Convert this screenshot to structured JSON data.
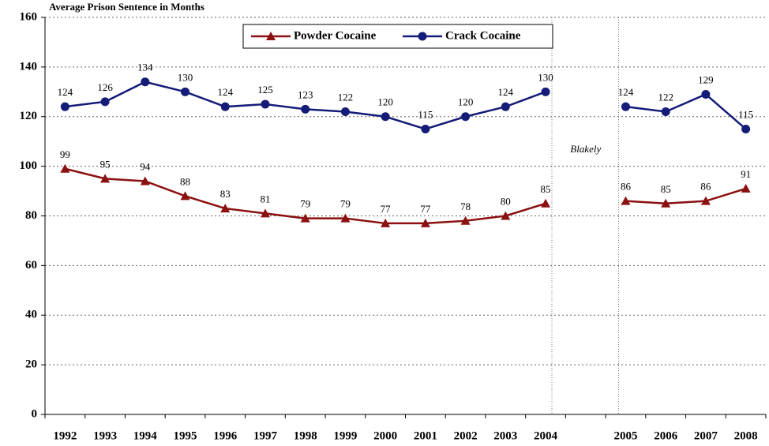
{
  "chart_data": {
    "type": "line",
    "y_axis_label": "Average Prison Sentence in Months",
    "categories": [
      "1992",
      "1993",
      "1994",
      "1995",
      "1996",
      "1997",
      "1998",
      "1999",
      "2000",
      "2001",
      "2002",
      "2003",
      "2004",
      null,
      "2005",
      "2006",
      "2007",
      "2008"
    ],
    "series": [
      {
        "name": "Powder Cocaine",
        "color": "#8b1010",
        "marker": "triangle",
        "values": [
          99,
          95,
          94,
          88,
          83,
          81,
          79,
          79,
          77,
          77,
          78,
          80,
          85,
          null,
          86,
          85,
          86,
          91
        ]
      },
      {
        "name": "Crack Cocaine",
        "color": "#141c78",
        "marker": "circle",
        "values": [
          124,
          126,
          134,
          130,
          124,
          125,
          123,
          122,
          120,
          115,
          120,
          124,
          130,
          null,
          124,
          122,
          129,
          115
        ]
      }
    ],
    "annotations": [
      "Blakely"
    ],
    "ylim": [
      0,
      160
    ],
    "yticks": [
      0,
      20,
      40,
      60,
      80,
      100,
      120,
      140,
      160
    ],
    "grid": true,
    "legend": "top"
  }
}
